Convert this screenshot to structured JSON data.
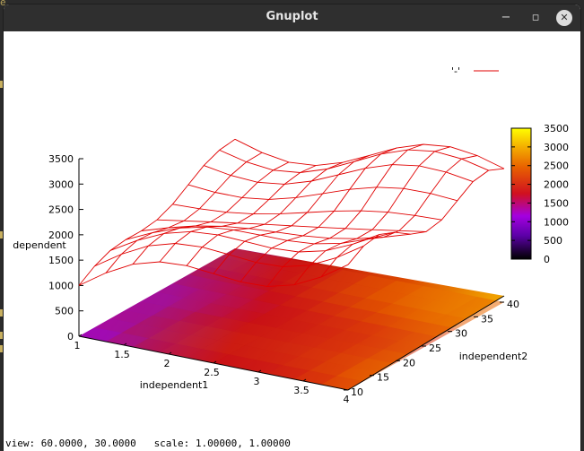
{
  "window": {
    "title": "Gnuplot"
  },
  "editor": {
    "partial_text": "e static PrintStream out;"
  },
  "status": {
    "text": "view: 60.0000, 30.0000   scale: 1.00000, 1.00000"
  },
  "chart_data": {
    "type": "surface3d",
    "legend": {
      "label": "'-'",
      "color": "#e00000",
      "placement": "top-right"
    },
    "xlabel": "independent1",
    "ylabel": "independent2",
    "zlabel": "dependent",
    "xticks": [
      "1",
      "1.5",
      "2",
      "2.5",
      "3",
      "3.5",
      "4"
    ],
    "yticks": [
      "10",
      "15",
      "20",
      "25",
      "30",
      "35",
      "40"
    ],
    "zticks": [
      "0",
      "500",
      "1000",
      "1500",
      "2000",
      "2500",
      "3000",
      "3500"
    ],
    "xrange": [
      1,
      4
    ],
    "yrange": [
      10,
      40
    ],
    "zrange": [
      0,
      3500
    ],
    "colorbox": {
      "ticks": [
        "0",
        "500",
        "1000",
        "1500",
        "2000",
        "2500",
        "3000",
        "3500"
      ],
      "range": [
        0,
        3500
      ]
    },
    "palette": [
      "#000000",
      "#6a00b8",
      "#a800e0",
      "#d0101c",
      "#e85c00",
      "#f4a800",
      "#ffff00"
    ],
    "view": {
      "rot_x": 60,
      "rot_z": 30,
      "scale": 1,
      "scale_z": 1
    }
  }
}
